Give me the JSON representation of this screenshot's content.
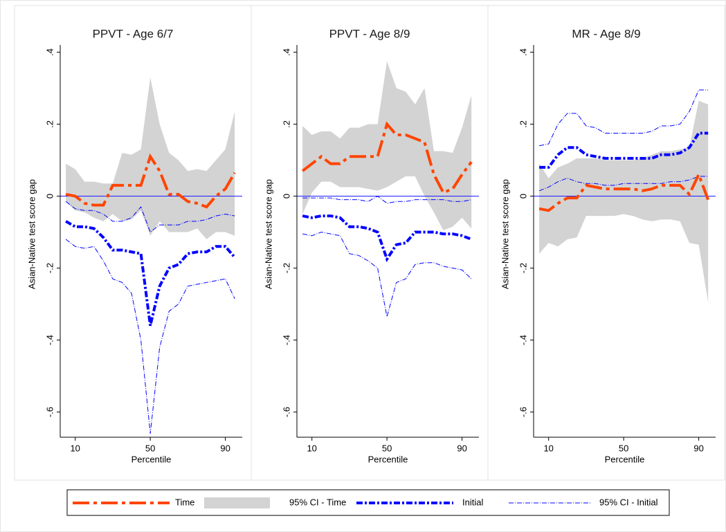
{
  "legend": {
    "series": [
      {
        "name": "Time",
        "color": "#ff4500"
      },
      {
        "name": "95% CI - Time",
        "color": "#d3d3d3"
      },
      {
        "name": "Initial",
        "color": "#0000ff"
      },
      {
        "name": "95% CI - Initial",
        "color": "#0000ff"
      }
    ]
  },
  "chart_data": [
    {
      "type": "line",
      "title": "PPVT - Age 6/7",
      "ylabel": "Asian-Native test score gap",
      "xlabel": "Percentile",
      "x": [
        5,
        10,
        15,
        20,
        25,
        30,
        35,
        40,
        45,
        50,
        55,
        60,
        65,
        70,
        75,
        80,
        85,
        90,
        95
      ],
      "series": [
        {
          "values": [
            0.005,
            0.0,
            -0.02,
            -0.025,
            -0.025,
            0.03,
            0.03,
            0.03,
            0.03,
            0.11,
            0.07,
            0.005,
            0.005,
            -0.015,
            -0.02,
            -0.03,
            0.0,
            0.02,
            0.065
          ]
        },
        {
          "lower": [
            -0.015,
            -0.04,
            -0.045,
            -0.06,
            -0.07,
            -0.05,
            -0.07,
            -0.065,
            -0.04,
            -0.11,
            -0.07,
            -0.1,
            -0.1,
            -0.1,
            -0.09,
            -0.12,
            -0.1,
            -0.1,
            -0.11
          ],
          "upper": [
            0.09,
            0.075,
            0.04,
            0.04,
            0.035,
            0.035,
            0.12,
            0.115,
            0.13,
            0.33,
            0.2,
            0.12,
            0.1,
            0.07,
            0.075,
            0.07,
            0.1,
            0.13,
            0.235
          ]
        },
        {
          "values": [
            -0.07,
            -0.085,
            -0.085,
            -0.09,
            -0.115,
            -0.15,
            -0.15,
            -0.155,
            -0.16,
            -0.36,
            -0.25,
            -0.2,
            -0.19,
            -0.16,
            -0.155,
            -0.155,
            -0.14,
            -0.14,
            -0.17
          ]
        },
        {
          "lower": [
            -0.12,
            -0.14,
            -0.145,
            -0.14,
            -0.18,
            -0.23,
            -0.24,
            -0.27,
            -0.4,
            -0.66,
            -0.42,
            -0.32,
            -0.3,
            -0.25,
            -0.245,
            -0.24,
            -0.235,
            -0.23,
            -0.285
          ],
          "upper": [
            -0.015,
            -0.035,
            -0.04,
            -0.04,
            -0.05,
            -0.07,
            -0.07,
            -0.06,
            -0.03,
            -0.1,
            -0.08,
            -0.08,
            -0.08,
            -0.07,
            -0.07,
            -0.065,
            -0.055,
            -0.05,
            -0.055
          ]
        }
      ],
      "xlim": [
        2,
        99
      ],
      "xticks": [
        10,
        50,
        90
      ],
      "ylim": [
        -0.67,
        0.42
      ],
      "yline": 0,
      "yticks": [
        {
          "value": -0.6,
          "label": "-.6"
        },
        {
          "value": -0.4,
          "label": "-.4"
        },
        {
          "value": -0.2,
          "label": "-.2"
        },
        0,
        {
          "value": 0.2,
          "label": ".2"
        },
        {
          "value": 0.4,
          "label": ".4"
        }
      ]
    },
    {
      "type": "line",
      "title": "PPVT - Age 8/9",
      "ylabel": "Asian-Native test score gap",
      "xlabel": "Percentile",
      "x": [
        5,
        10,
        15,
        20,
        25,
        30,
        35,
        40,
        45,
        50,
        55,
        60,
        65,
        70,
        75,
        80,
        85,
        90,
        95
      ],
      "series": [
        {
          "values": [
            0.07,
            0.09,
            0.11,
            0.09,
            0.09,
            0.11,
            0.11,
            0.11,
            0.11,
            0.2,
            0.17,
            0.17,
            0.16,
            0.15,
            0.06,
            0.01,
            0.02,
            0.06,
            0.095
          ]
        },
        {
          "lower": [
            -0.05,
            0.01,
            0.04,
            0.04,
            0.025,
            0.025,
            0.025,
            0.02,
            0.015,
            0.025,
            0.04,
            0.055,
            0.055,
            0.0,
            -0.045,
            -0.095,
            -0.085,
            -0.06,
            -0.09
          ],
          "upper": [
            0.195,
            0.17,
            0.18,
            0.18,
            0.16,
            0.19,
            0.19,
            0.2,
            0.2,
            0.375,
            0.3,
            0.29,
            0.255,
            0.3,
            0.125,
            0.125,
            0.12,
            0.19,
            0.28
          ]
        },
        {
          "values": [
            -0.055,
            -0.06,
            -0.055,
            -0.055,
            -0.06,
            -0.085,
            -0.085,
            -0.09,
            -0.1,
            -0.175,
            -0.135,
            -0.13,
            -0.1,
            -0.1,
            -0.1,
            -0.105,
            -0.105,
            -0.11,
            -0.12
          ]
        },
        {
          "lower": [
            -0.105,
            -0.11,
            -0.1,
            -0.105,
            -0.11,
            -0.16,
            -0.165,
            -0.18,
            -0.2,
            -0.335,
            -0.24,
            -0.23,
            -0.19,
            -0.185,
            -0.185,
            -0.195,
            -0.2,
            -0.205,
            -0.23
          ],
          "upper": [
            -0.005,
            -0.005,
            -0.005,
            -0.005,
            -0.01,
            -0.01,
            -0.01,
            -0.015,
            0.0,
            -0.02,
            -0.015,
            -0.015,
            -0.01,
            -0.01,
            -0.01,
            -0.01,
            -0.015,
            -0.015,
            -0.01
          ]
        }
      ],
      "xlim": [
        2,
        99
      ],
      "xticks": [
        10,
        50,
        90
      ],
      "ylim": [
        -0.67,
        0.42
      ],
      "yline": 0,
      "yticks": [
        {
          "value": -0.6,
          "label": "-.6"
        },
        {
          "value": -0.4,
          "label": "-.4"
        },
        {
          "value": -0.2,
          "label": "-.2"
        },
        0,
        {
          "value": 0.2,
          "label": ".2"
        },
        {
          "value": 0.4,
          "label": ".4"
        }
      ]
    },
    {
      "type": "line",
      "title": "MR - Age 8/9",
      "ylabel": "Asian-Native test score gap",
      "xlabel": "Percentile",
      "x": [
        5,
        10,
        15,
        20,
        25,
        30,
        35,
        40,
        45,
        50,
        55,
        60,
        65,
        70,
        75,
        80,
        85,
        90,
        95
      ],
      "series": [
        {
          "values": [
            -0.035,
            -0.04,
            -0.02,
            -0.005,
            -0.005,
            0.03,
            0.025,
            0.02,
            0.02,
            0.02,
            0.02,
            0.015,
            0.02,
            0.03,
            0.03,
            0.03,
            0.005,
            0.06,
            -0.01
          ]
        },
        {
          "lower": [
            -0.16,
            -0.13,
            -0.14,
            -0.12,
            -0.115,
            -0.055,
            -0.055,
            -0.055,
            -0.055,
            -0.05,
            -0.055,
            -0.065,
            -0.07,
            -0.065,
            -0.065,
            -0.07,
            -0.13,
            -0.135,
            -0.295
          ],
          "upper": [
            0.09,
            0.05,
            0.08,
            0.09,
            0.105,
            0.105,
            0.105,
            0.1,
            0.1,
            0.1,
            0.1,
            0.105,
            0.115,
            0.125,
            0.125,
            0.13,
            0.135,
            0.265,
            0.255
          ]
        },
        {
          "values": [
            0.08,
            0.08,
            0.115,
            0.135,
            0.135,
            0.115,
            0.11,
            0.105,
            0.105,
            0.105,
            0.105,
            0.105,
            0.105,
            0.115,
            0.115,
            0.12,
            0.135,
            0.175,
            0.175
          ]
        },
        {
          "lower": [
            0.015,
            0.025,
            0.04,
            0.05,
            0.04,
            0.035,
            0.035,
            0.03,
            0.03,
            0.035,
            0.035,
            0.035,
            0.035,
            0.035,
            0.04,
            0.04,
            0.045,
            0.055,
            0.055
          ],
          "upper": [
            0.14,
            0.145,
            0.2,
            0.23,
            0.23,
            0.195,
            0.19,
            0.175,
            0.175,
            0.175,
            0.175,
            0.175,
            0.18,
            0.195,
            0.195,
            0.2,
            0.235,
            0.295,
            0.295
          ]
        }
      ],
      "xlim": [
        2,
        99
      ],
      "xticks": [
        10,
        50,
        90
      ],
      "ylim": [
        -0.67,
        0.42
      ],
      "yline": 0,
      "yticks": [
        {
          "value": -0.6,
          "label": "-.6"
        },
        {
          "value": -0.4,
          "label": "-.4"
        },
        {
          "value": -0.2,
          "label": "-.2"
        },
        0,
        {
          "value": 0.2,
          "label": ".2"
        },
        {
          "value": 0.4,
          "label": ".4"
        }
      ]
    }
  ]
}
